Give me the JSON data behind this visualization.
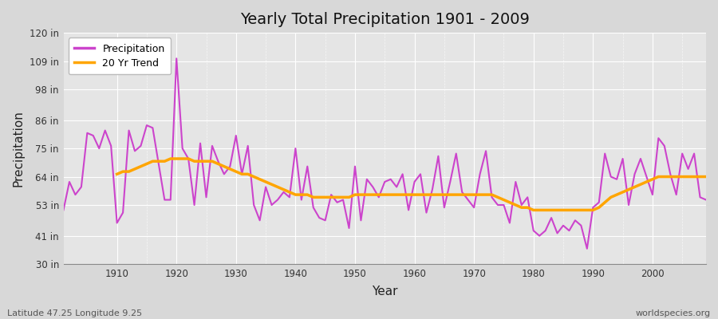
{
  "title": "Yearly Total Precipitation 1901 - 2009",
  "xlabel": "Year",
  "ylabel": "Precipitation",
  "bg_color": "#d8d8d8",
  "plot_bg_color": "#d8d8d8",
  "precip_color": "#cc44cc",
  "trend_color": "#ffa500",
  "legend_precip": "Precipitation",
  "legend_trend": "20 Yr Trend",
  "ylim": [
    30,
    120
  ],
  "yticks": [
    30,
    41,
    53,
    64,
    75,
    86,
    98,
    109,
    120
  ],
  "ytick_labels": [
    "30 in",
    "41 in",
    "53 in",
    "64 in",
    "75 in",
    "86 in",
    "98 in",
    "109 in",
    "120 in"
  ],
  "xlim": [
    1901,
    2009
  ],
  "xticks": [
    1910,
    1920,
    1930,
    1940,
    1950,
    1960,
    1970,
    1980,
    1990,
    2000
  ],
  "years": [
    1901,
    1902,
    1903,
    1904,
    1905,
    1906,
    1907,
    1908,
    1909,
    1910,
    1911,
    1912,
    1913,
    1914,
    1915,
    1916,
    1917,
    1918,
    1919,
    1920,
    1921,
    1922,
    1923,
    1924,
    1925,
    1926,
    1927,
    1928,
    1929,
    1930,
    1931,
    1932,
    1933,
    1934,
    1935,
    1936,
    1937,
    1938,
    1939,
    1940,
    1941,
    1942,
    1943,
    1944,
    1945,
    1946,
    1947,
    1948,
    1949,
    1950,
    1951,
    1952,
    1953,
    1954,
    1955,
    1956,
    1957,
    1958,
    1959,
    1960,
    1961,
    1962,
    1963,
    1964,
    1965,
    1966,
    1967,
    1968,
    1969,
    1970,
    1971,
    1972,
    1973,
    1974,
    1975,
    1976,
    1977,
    1978,
    1979,
    1980,
    1981,
    1982,
    1983,
    1984,
    1985,
    1986,
    1987,
    1988,
    1989,
    1990,
    1991,
    1992,
    1993,
    1994,
    1995,
    1996,
    1997,
    1998,
    1999,
    2000,
    2001,
    2002,
    2003,
    2004,
    2005,
    2006,
    2007,
    2008,
    2009
  ],
  "precip": [
    51,
    62,
    57,
    60,
    81,
    80,
    75,
    82,
    76,
    46,
    50,
    82,
    74,
    76,
    84,
    83,
    69,
    55,
    55,
    110,
    75,
    71,
    53,
    77,
    56,
    76,
    70,
    65,
    68,
    80,
    65,
    76,
    53,
    47,
    60,
    53,
    55,
    58,
    56,
    75,
    55,
    68,
    52,
    48,
    47,
    57,
    54,
    55,
    44,
    68,
    47,
    63,
    60,
    56,
    62,
    63,
    60,
    65,
    51,
    62,
    65,
    50,
    59,
    72,
    52,
    62,
    73,
    58,
    55,
    52,
    65,
    74,
    56,
    53,
    53,
    46,
    62,
    53,
    56,
    43,
    41,
    43,
    48,
    42,
    45,
    43,
    47,
    45,
    36,
    52,
    54,
    73,
    64,
    63,
    71,
    53,
    65,
    71,
    64,
    57,
    79,
    76,
    65,
    57,
    73,
    67,
    73,
    56,
    55
  ],
  "trend": [
    null,
    null,
    null,
    null,
    null,
    null,
    null,
    null,
    null,
    65,
    66,
    66,
    67,
    68,
    69,
    70,
    70,
    70,
    71,
    71,
    71,
    71,
    70,
    70,
    70,
    70,
    69,
    68,
    67,
    66,
    65,
    65,
    64,
    63,
    62,
    61,
    60,
    59,
    58,
    57,
    57,
    57,
    56,
    56,
    56,
    56,
    56,
    56,
    56,
    57,
    57,
    57,
    57,
    57,
    57,
    57,
    57,
    57,
    57,
    57,
    57,
    57,
    57,
    57,
    57,
    57,
    57,
    57,
    57,
    57,
    57,
    57,
    57,
    56,
    55,
    54,
    53,
    52,
    52,
    51,
    51,
    51,
    51,
    51,
    51,
    51,
    51,
    51,
    51,
    51,
    52,
    54,
    56,
    57,
    58,
    59,
    60,
    61,
    62,
    63,
    64,
    64,
    64,
    64,
    64,
    64,
    64,
    64,
    64
  ],
  "footnote_left": "Latitude 47.25 Longitude 9.25",
  "footnote_right": "worldspecies.org"
}
